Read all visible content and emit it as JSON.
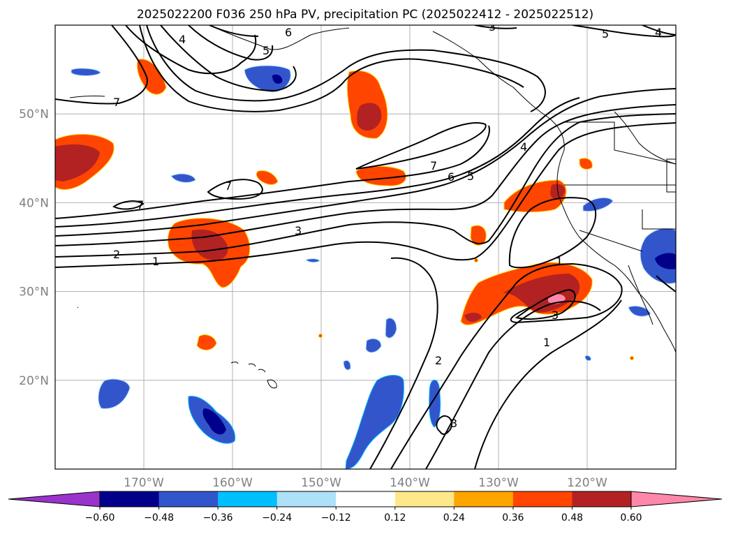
{
  "title": "2025022200 F036 250 hPa PV, precipitation PC (2025022412 - 2025022512)",
  "map": {
    "lon_range": [
      -180,
      -110
    ],
    "lat_range": [
      10,
      60
    ],
    "lon_ticks": [
      {
        "value": -170,
        "label": "170°W"
      },
      {
        "value": -160,
        "label": "160°W"
      },
      {
        "value": -150,
        "label": "150°W"
      },
      {
        "value": -140,
        "label": "140°W"
      },
      {
        "value": -130,
        "label": "130°W"
      },
      {
        "value": -120,
        "label": "120°W"
      }
    ],
    "lat_ticks": [
      {
        "value": 50,
        "label": "50°N"
      },
      {
        "value": 40,
        "label": "40°N"
      },
      {
        "value": 30,
        "label": "30°N"
      },
      {
        "value": 20,
        "label": "20°N"
      }
    ],
    "gridlines": true,
    "contour_labels": [
      "1",
      "2",
      "3",
      "4",
      "5",
      "6",
      "7"
    ]
  },
  "colorbar": {
    "levels": [
      "−0.60",
      "−0.48",
      "−0.36",
      "−0.24",
      "−0.12",
      "0.12",
      "0.24",
      "0.36",
      "0.48",
      "0.60"
    ],
    "colors": [
      "#9933cc",
      "#00008b",
      "#3355cc",
      "#00bfff",
      "#aee0fa",
      "#ffffff",
      "#ffe88a",
      "#ffa500",
      "#ff4500",
      "#b22222",
      "#ff88aa"
    ],
    "extend": "both"
  }
}
